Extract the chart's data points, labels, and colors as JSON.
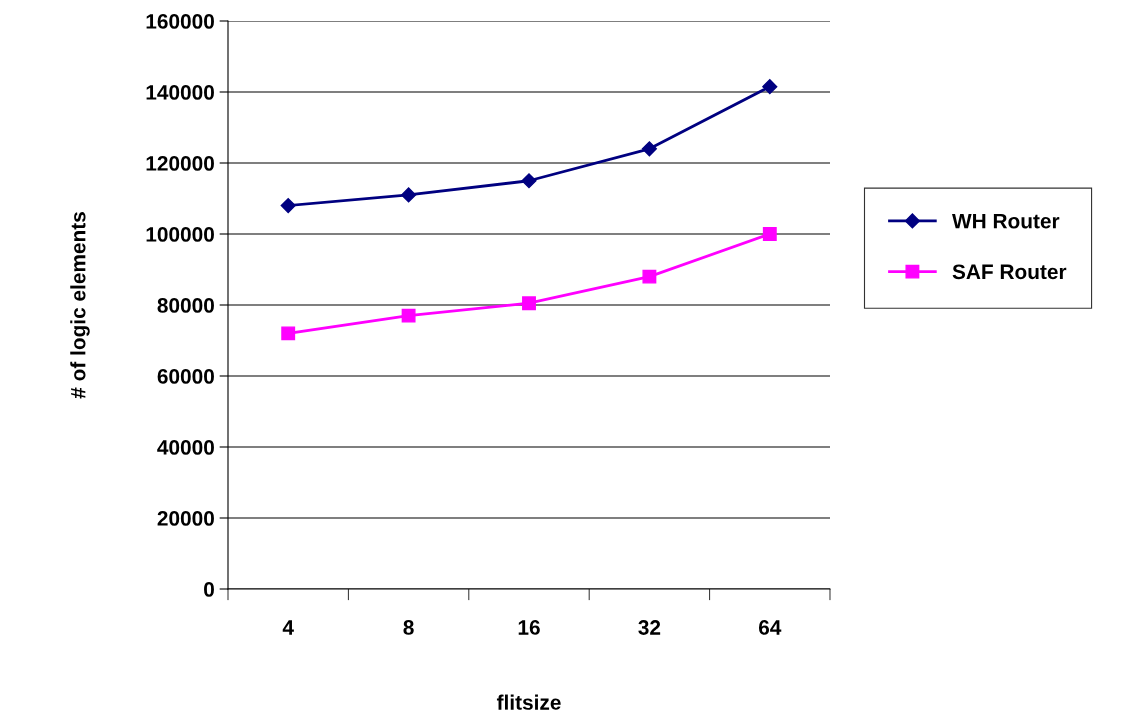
{
  "chart_data": {
    "type": "line",
    "xlabel": "flitsize",
    "ylabel": "# of logic elements",
    "categories": [
      "4",
      "8",
      "16",
      "32",
      "64"
    ],
    "series": [
      {
        "name": "WH Router",
        "color": "#000080",
        "marker": "diamond",
        "values": [
          108000,
          111000,
          115000,
          124000,
          141500
        ]
      },
      {
        "name": "SAF Router",
        "color": "#ff00ff",
        "marker": "square",
        "values": [
          72000,
          77000,
          80500,
          88000,
          100000
        ]
      }
    ],
    "ylim": [
      0,
      160000
    ],
    "yticks": [
      0,
      20000,
      40000,
      60000,
      80000,
      100000,
      120000,
      140000,
      160000
    ],
    "grid": "y",
    "legend": "right",
    "line_style": "solid"
  }
}
